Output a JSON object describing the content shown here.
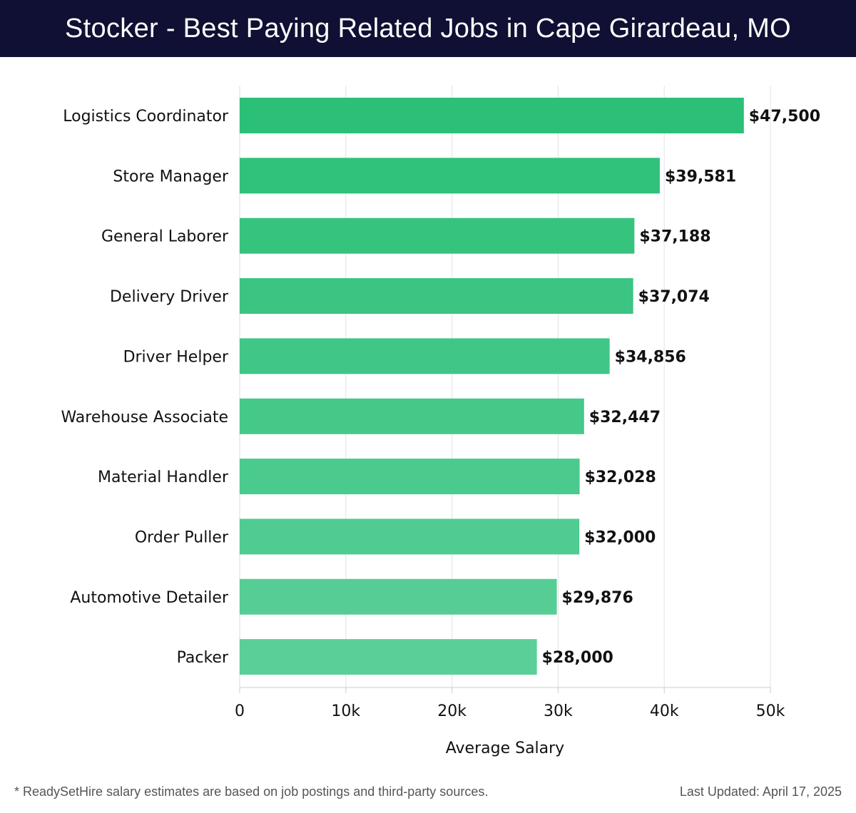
{
  "header": {
    "title": "Stocker - Best Paying Related Jobs in Cape Girardeau, MO"
  },
  "chart_data": {
    "type": "bar",
    "orientation": "horizontal",
    "title": "Stocker - Best Paying Related Jobs in Cape Girardeau, MO",
    "xlabel": "Average Salary",
    "ylabel": "",
    "xlim": [
      0,
      50000
    ],
    "x_ticks": [
      0,
      10000,
      20000,
      30000,
      40000,
      50000
    ],
    "x_tick_labels": [
      "0",
      "10k",
      "20k",
      "30k",
      "40k",
      "50k"
    ],
    "grid": true,
    "categories": [
      "Logistics Coordinator",
      "Store Manager",
      "General Laborer",
      "Delivery Driver",
      "Driver Helper",
      "Warehouse Associate",
      "Material Handler",
      "Order Puller",
      "Automotive Detailer",
      "Packer"
    ],
    "values": [
      47500,
      39581,
      37188,
      37074,
      34856,
      32447,
      32028,
      32000,
      29876,
      28000
    ],
    "value_labels": [
      "$47,500",
      "$39,581",
      "$37,188",
      "$37,074",
      "$34,856",
      "$32,447",
      "$32,028",
      "$32,000",
      "$29,876",
      "$28,000"
    ],
    "bar_color_top": "#2bbf77",
    "bar_color_bottom": "#5bcf98"
  },
  "footer": {
    "note": "* ReadySetHire salary estimates are based on job postings and third-party sources.",
    "updated": "Last Updated: April 17, 2025"
  }
}
